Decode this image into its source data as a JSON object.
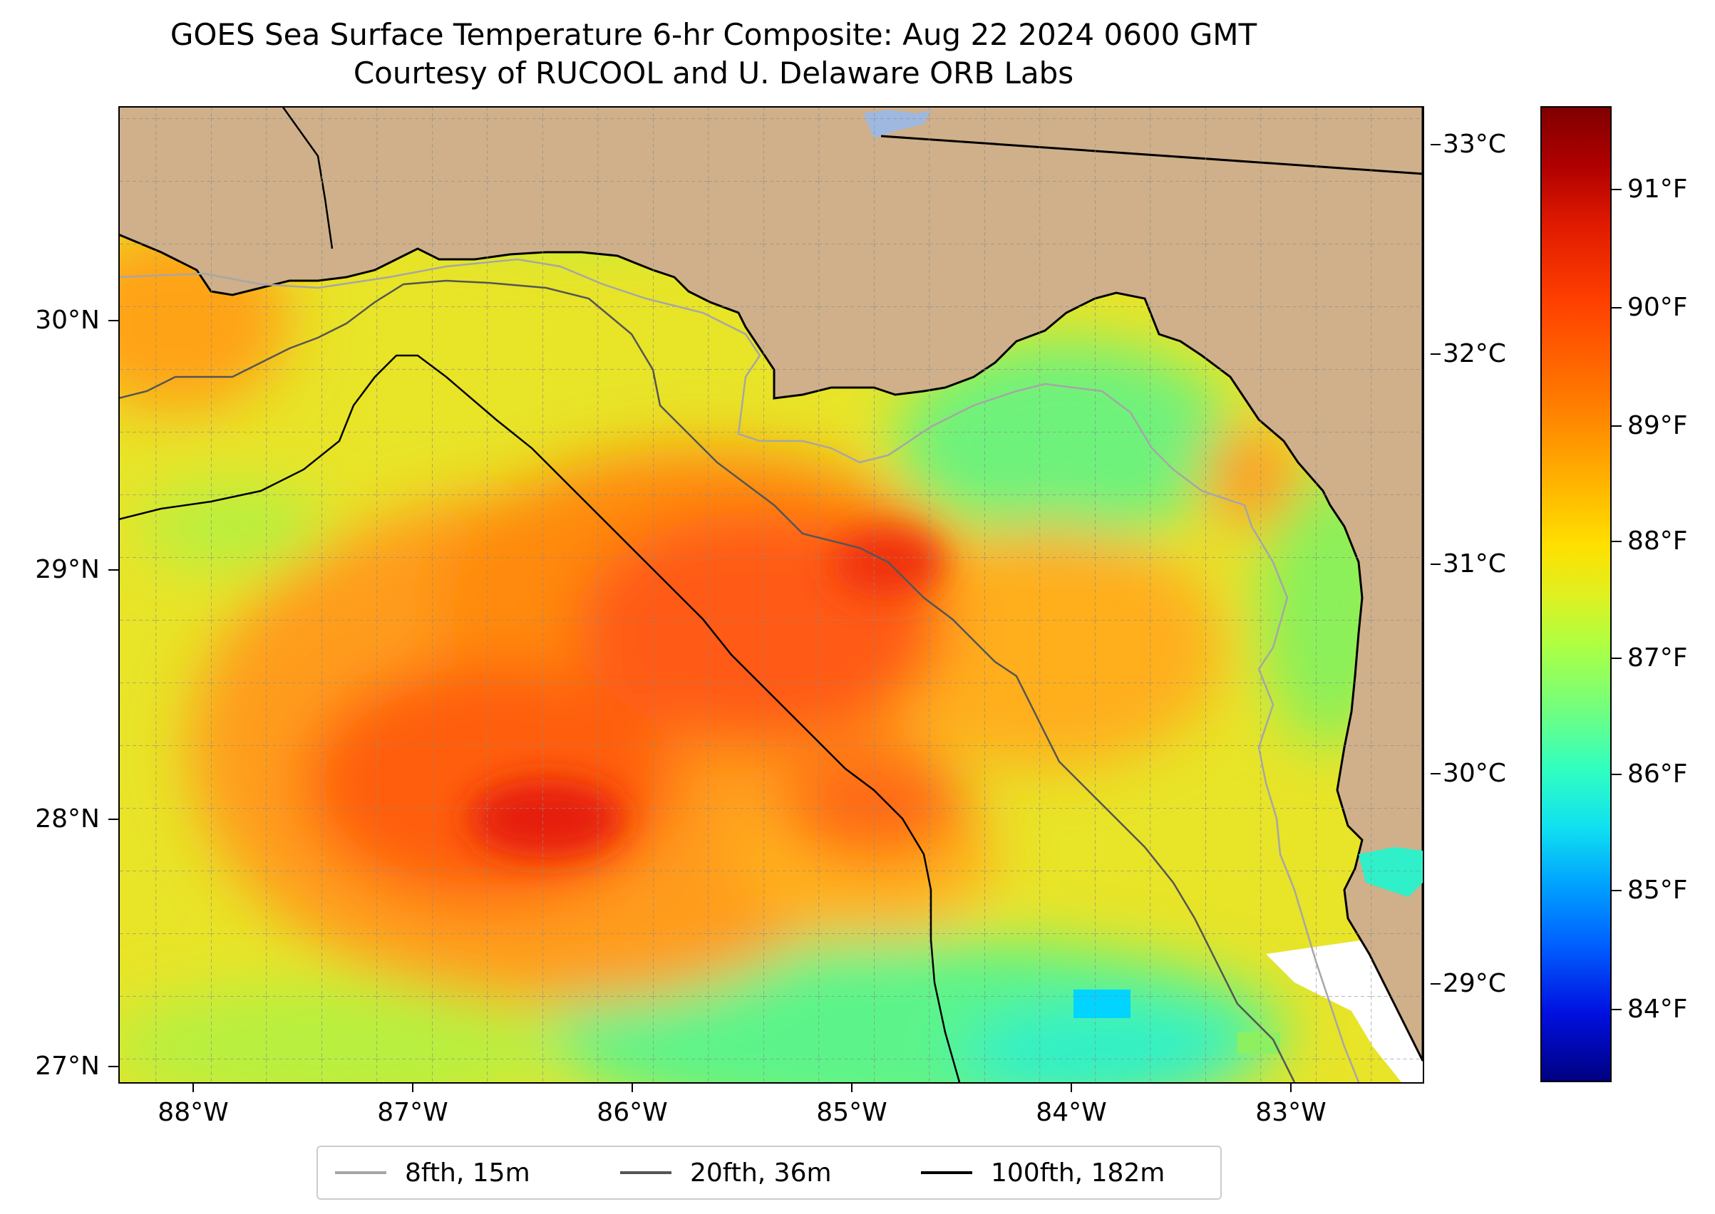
{
  "title": {
    "line1": "GOES Sea Surface Temperature 6-hr Composite: Aug 22 2024 0600 GMT",
    "line2": "Courtesy of RUCOOL and U. Delaware ORB Labs"
  },
  "map": {
    "region": "Eastern Gulf of Mexico / Florida Gulf coast",
    "lon_range": [
      -88.33,
      -82.37
    ],
    "lat_range": [
      26.93,
      30.85
    ],
    "x_ticks": [
      "88°W",
      "87°W",
      "86°W",
      "85°W",
      "84°W",
      "83°W"
    ],
    "y_ticks": [
      "30°N",
      "29°N",
      "28°N",
      "27°N"
    ],
    "land_color": "#cfb08a",
    "lake_color": "#9fb8e0",
    "grid": "dashed gray every 0.25°"
  },
  "colorbar": {
    "fahrenheit_ticks": [
      "91°F",
      "90°F",
      "89°F",
      "88°F",
      "87°F",
      "86°F",
      "85°F",
      "84°F"
    ],
    "celsius_ticks": [
      "33°C",
      "32°C",
      "31°C",
      "30°C",
      "29°C"
    ],
    "colormap": "jet",
    "range_F": [
      83.4,
      91.6
    ]
  },
  "legend": {
    "items": [
      {
        "label": "8fth, 15m",
        "color": "#a6a6a6"
      },
      {
        "label": "20fth, 36m",
        "color": "#555555"
      },
      {
        "label": "100fth, 182m",
        "color": "#000000"
      }
    ],
    "placement": "bottom-center"
  }
}
